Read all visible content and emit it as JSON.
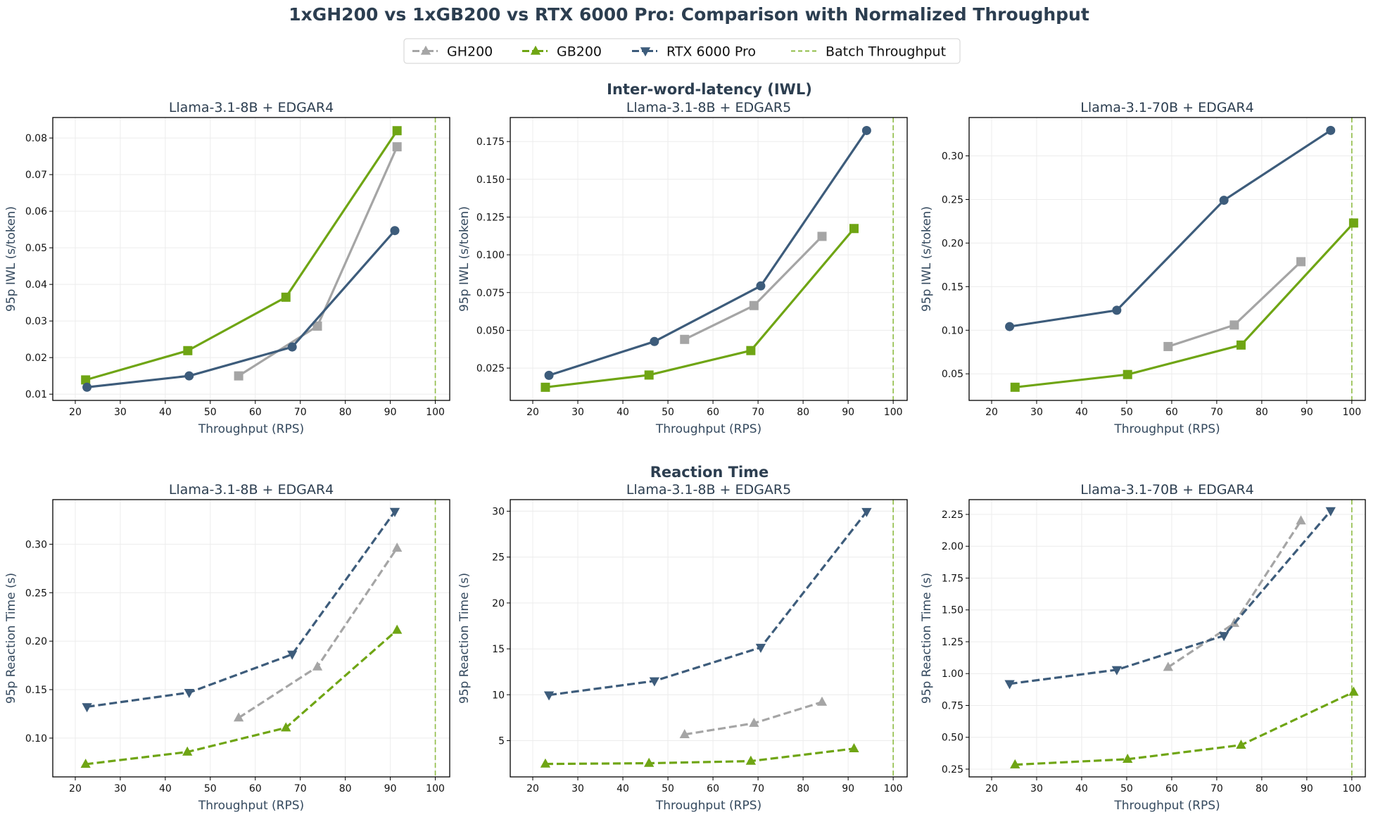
{
  "title": "1xGH200 vs 1xGB200 vs RTX 6000 Pro: Comparison with Normalized Throughput",
  "sections": [
    "Inter-word-latency (IWL)",
    "Reaction Time"
  ],
  "legend": [
    {
      "label": "GH200",
      "color": "#a5a5a5",
      "marker": "triangle-up",
      "linestyle": "dash-dot"
    },
    {
      "label": "GB200",
      "color": "#6fa514",
      "marker": "triangle-up",
      "linestyle": "dash-dot"
    },
    {
      "label": "RTX 6000 Pro",
      "color": "#3d5c7b",
      "marker": "triangle-down",
      "linestyle": "dash-dot"
    },
    {
      "label": "Batch Throughput",
      "color": "#8fbc45",
      "marker": "none",
      "linestyle": "dashed"
    }
  ],
  "chart_data": [
    {
      "type": "line",
      "section": "Inter-word-latency (IWL)",
      "title": "Llama-3.1-8B + EDGAR4",
      "xlabel": "Throughput (RPS)",
      "ylabel": "95p IWL (s/token)",
      "xlim": [
        15,
        103.2
      ],
      "ylim": [
        0.0083,
        0.0856
      ],
      "xticks": [
        "20",
        "30",
        "40",
        "50",
        "60",
        "70",
        "80",
        "90",
        "100"
      ],
      "yticks": [
        "0.01",
        "0.02",
        "0.03",
        "0.04",
        "0.05",
        "0.06",
        "0.07",
        "0.08"
      ],
      "grid": true,
      "batch_throughput": 100,
      "series": [
        {
          "name": "GH200",
          "color": "#a5a5a5",
          "marker": "square",
          "linestyle": "solid",
          "x": [
            56.3,
            73.8,
            91.5
          ],
          "y": [
            0.015,
            0.0286,
            0.0776
          ]
        },
        {
          "name": "GB200",
          "color": "#6fa514",
          "marker": "square",
          "linestyle": "solid",
          "x": [
            22.3,
            45.0,
            66.8,
            91.5
          ],
          "y": [
            0.0139,
            0.0219,
            0.0365,
            0.082
          ]
        },
        {
          "name": "RTX 6000 Pro",
          "color": "#3d5c7b",
          "marker": "circle",
          "linestyle": "solid",
          "x": [
            22.6,
            45.3,
            68.2,
            91.0
          ],
          "y": [
            0.0119,
            0.015,
            0.0229,
            0.0547
          ]
        }
      ]
    },
    {
      "type": "line",
      "section": "Inter-word-latency (IWL)",
      "title": "Llama-3.1-8B + EDGAR5",
      "xlabel": "Throughput (RPS)",
      "ylabel": "95p IWL (s/token)",
      "xlim": [
        15,
        103.1
      ],
      "ylim": [
        0.0036,
        0.1909
      ],
      "xticks": [
        "20",
        "30",
        "40",
        "50",
        "60",
        "70",
        "80",
        "90",
        "100"
      ],
      "yticks": [
        "0.025",
        "0.050",
        "0.075",
        "0.100",
        "0.125",
        "0.150",
        "0.175"
      ],
      "grid": true,
      "batch_throughput": 100,
      "series": [
        {
          "name": "GH200",
          "color": "#a5a5a5",
          "marker": "square",
          "linestyle": "solid",
          "x": [
            53.7,
            69.1,
            84.2
          ],
          "y": [
            0.044,
            0.0664,
            0.1122
          ]
        },
        {
          "name": "GB200",
          "color": "#6fa514",
          "marker": "square",
          "linestyle": "solid",
          "x": [
            22.8,
            45.8,
            68.4,
            91.3
          ],
          "y": [
            0.0123,
            0.0204,
            0.0366,
            0.1174
          ]
        },
        {
          "name": "RTX 6000 Pro",
          "color": "#3d5c7b",
          "marker": "circle",
          "linestyle": "solid",
          "x": [
            23.6,
            47.0,
            70.6,
            94.1
          ],
          "y": [
            0.0202,
            0.0426,
            0.0794,
            0.1823
          ]
        }
      ]
    },
    {
      "type": "line",
      "section": "Inter-word-latency (IWL)",
      "title": "Llama-3.1-70B + EDGAR4",
      "xlabel": "Throughput (RPS)",
      "ylabel": "95p IWL (s/token)",
      "xlim": [
        15,
        103
      ],
      "ylim": [
        0.0195,
        0.344
      ],
      "xticks": [
        "20",
        "30",
        "40",
        "50",
        "60",
        "70",
        "80",
        "90",
        "100"
      ],
      "yticks": [
        "0.05",
        "0.10",
        "0.15",
        "0.20",
        "0.25",
        "0.30"
      ],
      "grid": true,
      "batch_throughput": 100,
      "series": [
        {
          "name": "GH200",
          "color": "#a5a5a5",
          "marker": "square",
          "linestyle": "solid",
          "x": [
            59.2,
            73.9,
            88.7
          ],
          "y": [
            0.0813,
            0.106,
            0.1786
          ]
        },
        {
          "name": "GB200",
          "color": "#6fa514",
          "marker": "square",
          "linestyle": "solid",
          "x": [
            25.2,
            50.2,
            75.4,
            100.4
          ],
          "y": [
            0.0346,
            0.0492,
            0.083,
            0.223
          ]
        },
        {
          "name": "RTX 6000 Pro",
          "color": "#3d5c7b",
          "marker": "circle",
          "linestyle": "solid",
          "x": [
            24.0,
            47.8,
            71.6,
            95.3
          ],
          "y": [
            0.1042,
            0.1229,
            0.2491,
            0.3292
          ]
        }
      ]
    },
    {
      "type": "line",
      "section": "Reaction Time",
      "title": "Llama-3.1-8B + EDGAR4",
      "xlabel": "Throughput (RPS)",
      "ylabel": "95p Reaction Time (s)",
      "xlim": [
        15,
        103.2
      ],
      "ylim": [
        0.06,
        0.346
      ],
      "xticks": [
        "20",
        "30",
        "40",
        "50",
        "60",
        "70",
        "80",
        "90",
        "100"
      ],
      "yticks": [
        "0.10",
        "0.15",
        "0.20",
        "0.25",
        "0.30"
      ],
      "grid": true,
      "batch_throughput": 100,
      "series": [
        {
          "name": "GH200",
          "color": "#a5a5a5",
          "marker": "triangle-up",
          "linestyle": "dashed",
          "x": [
            56.3,
            73.8,
            91.5
          ],
          "y": [
            0.1209,
            0.1736,
            0.2961
          ]
        },
        {
          "name": "GB200",
          "color": "#6fa514",
          "marker": "triangle-up",
          "linestyle": "dashed",
          "x": [
            22.3,
            44.9,
            66.8,
            91.5
          ],
          "y": [
            0.0731,
            0.0857,
            0.1107,
            0.2114
          ]
        },
        {
          "name": "RTX 6000 Pro",
          "color": "#3d5c7b",
          "marker": "triangle-down",
          "linestyle": "dashed",
          "x": [
            22.6,
            45.3,
            68.2,
            91.0
          ],
          "y": [
            0.1323,
            0.147,
            0.1864,
            0.3337
          ]
        }
      ]
    },
    {
      "type": "line",
      "section": "Reaction Time",
      "title": "Llama-3.1-8B + EDGAR5",
      "xlabel": "Throughput (RPS)",
      "ylabel": "95p Reaction Time (s)",
      "xlim": [
        15,
        103.1
      ],
      "ylim": [
        1.05,
        31.26
      ],
      "xticks": [
        "20",
        "30",
        "40",
        "50",
        "60",
        "70",
        "80",
        "90",
        "100"
      ],
      "yticks": [
        "5",
        "10",
        "15",
        "20",
        "25",
        "30"
      ],
      "grid": true,
      "batch_throughput": 100,
      "series": [
        {
          "name": "GH200",
          "color": "#a5a5a5",
          "marker": "triangle-up",
          "linestyle": "dashed",
          "x": [
            53.7,
            69.1,
            84.2
          ],
          "y": [
            5.67,
            6.9,
            9.2
          ]
        },
        {
          "name": "GB200",
          "color": "#6fa514",
          "marker": "triangle-up",
          "linestyle": "dashed",
          "x": [
            22.8,
            45.8,
            68.4,
            91.3
          ],
          "y": [
            2.46,
            2.54,
            2.77,
            4.13
          ]
        },
        {
          "name": "RTX 6000 Pro",
          "color": "#3d5c7b",
          "marker": "triangle-down",
          "linestyle": "dashed",
          "x": [
            23.6,
            47.0,
            70.6,
            94.1
          ],
          "y": [
            9.97,
            11.5,
            15.15,
            29.95
          ]
        }
      ]
    },
    {
      "type": "line",
      "section": "Reaction Time",
      "title": "Llama-3.1-70B + EDGAR4",
      "xlabel": "Throughput (RPS)",
      "ylabel": "95p Reaction Time (s)",
      "xlim": [
        15,
        103
      ],
      "ylim": [
        0.189,
        2.366
      ],
      "xticks": [
        "20",
        "30",
        "40",
        "50",
        "60",
        "70",
        "80",
        "90",
        "100"
      ],
      "yticks": [
        "0.25",
        "0.50",
        "0.75",
        "1.00",
        "1.25",
        "1.50",
        "1.75",
        "2.00",
        "2.25"
      ],
      "grid": true,
      "batch_throughput": 100,
      "series": [
        {
          "name": "GH200",
          "color": "#a5a5a5",
          "marker": "triangle-up",
          "linestyle": "dashed",
          "x": [
            59.2,
            73.9,
            88.7
          ],
          "y": [
            1.05,
            1.395,
            2.2
          ]
        },
        {
          "name": "GB200",
          "color": "#6fa514",
          "marker": "triangle-up",
          "linestyle": "dashed",
          "x": [
            25.2,
            50.2,
            75.4,
            100.4
          ],
          "y": [
            0.285,
            0.328,
            0.439,
            0.855
          ]
        },
        {
          "name": "RTX 6000 Pro",
          "color": "#3d5c7b",
          "marker": "triangle-down",
          "linestyle": "dashed",
          "x": [
            24.0,
            47.8,
            71.6,
            95.3
          ],
          "y": [
            0.92,
            1.03,
            1.298,
            2.278
          ]
        }
      ]
    }
  ]
}
